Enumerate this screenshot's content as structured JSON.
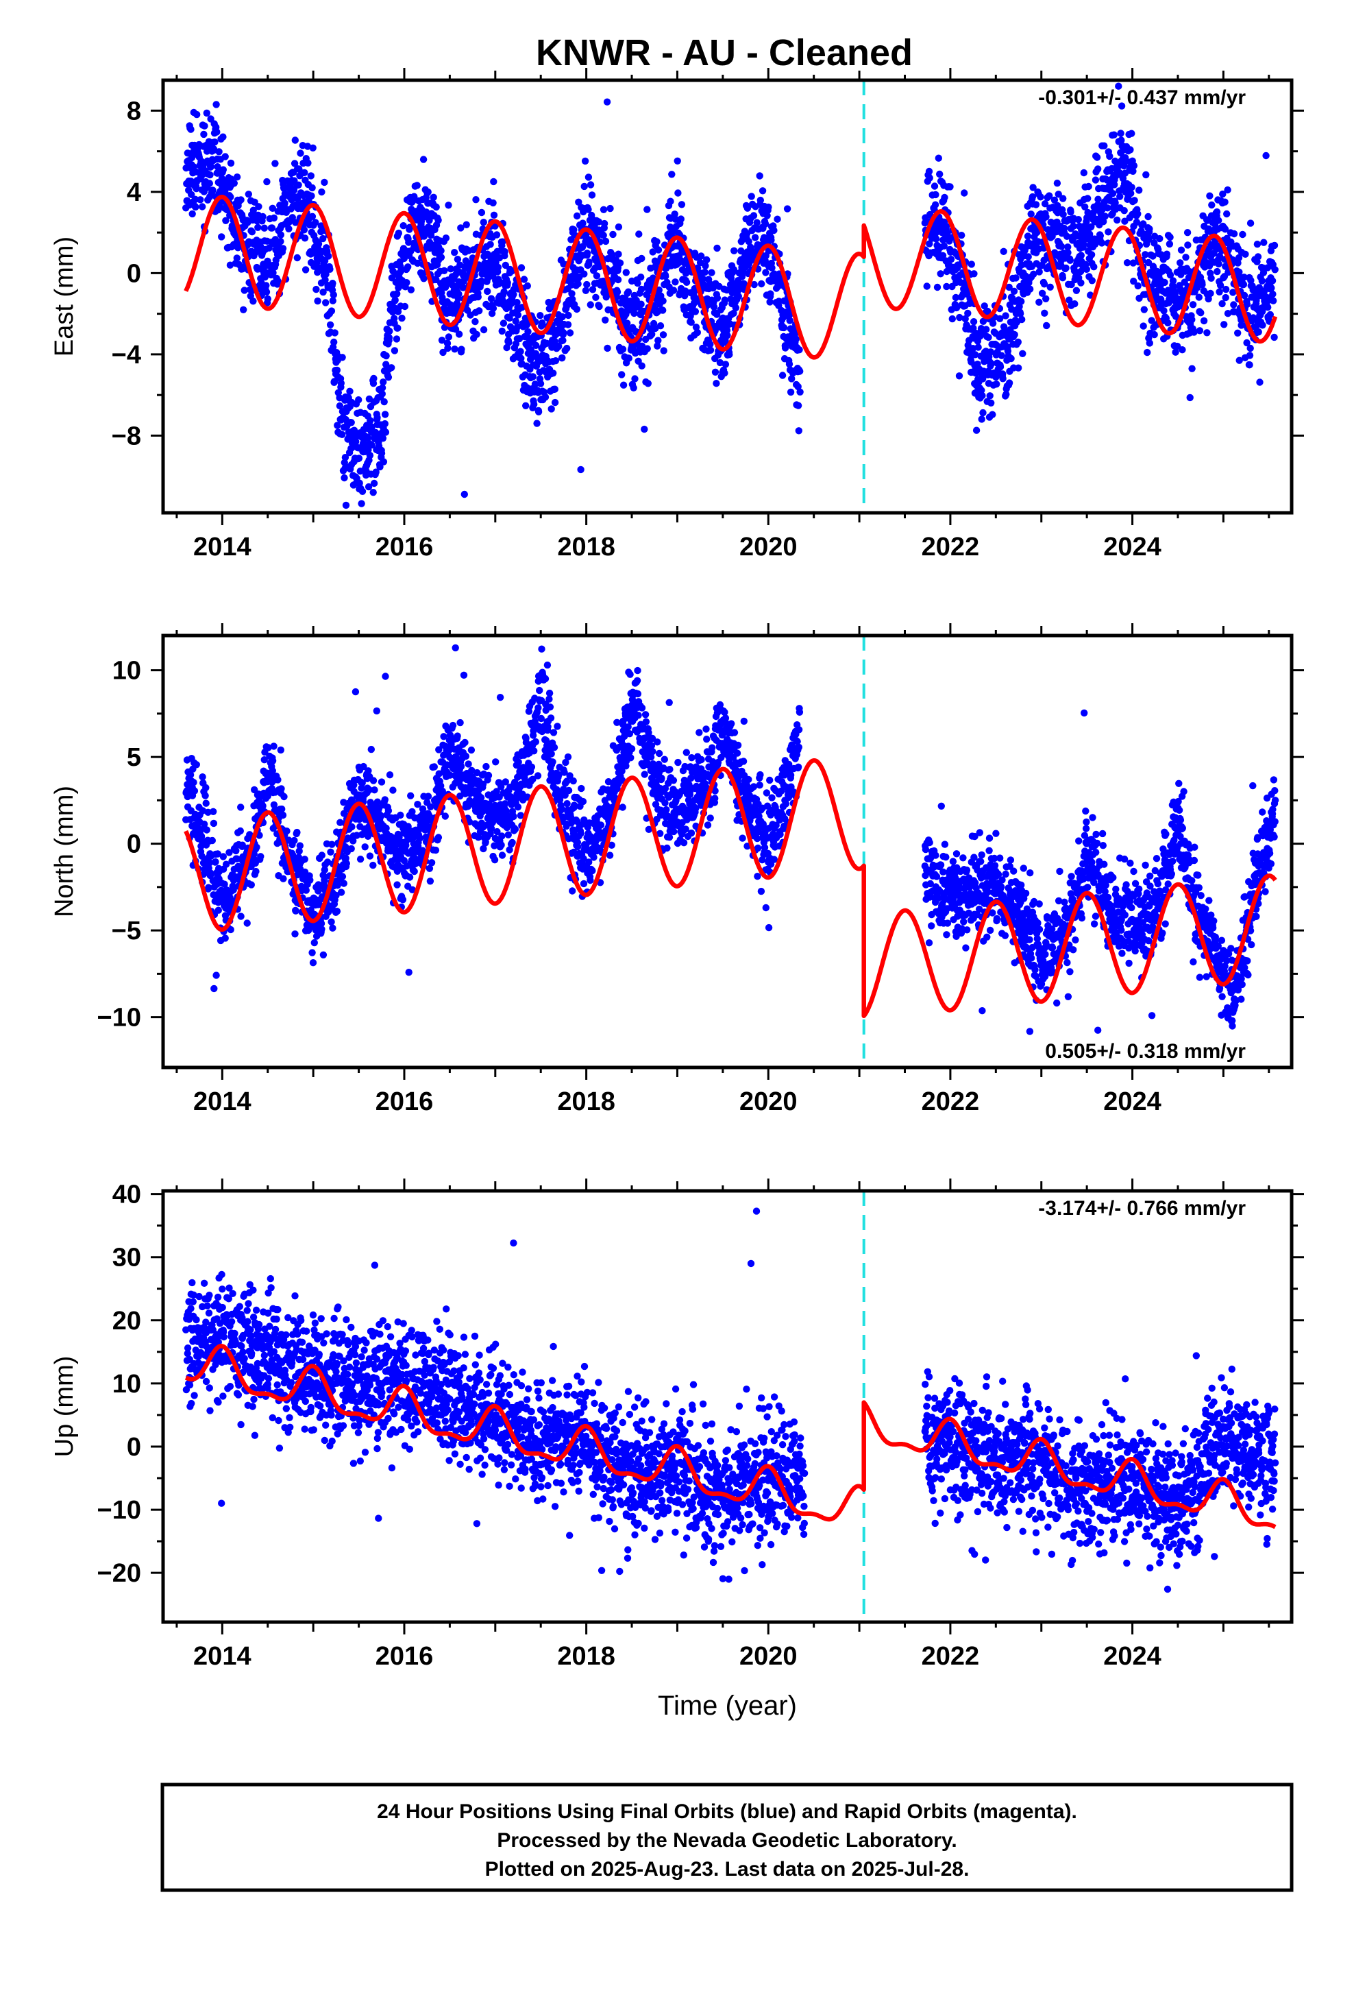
{
  "title": "KNWR  - AU - Cleaned",
  "footer": {
    "line1": "24 Hour Positions Using Final Orbits (blue) and Rapid Orbits (magenta).",
    "line2": "Processed by the Nevada Geodetic Laboratory.",
    "line3": "Plotted on 2025-Aug-23. Last data on 2025-Jul-28."
  },
  "colors": {
    "data": "#0000ff",
    "model": "#ff0000",
    "step": "#20e0e0",
    "frame": "#000000"
  },
  "chart_data": [
    {
      "type": "scatter",
      "name": "east",
      "ylabel": "East (mm)",
      "xlabel": "",
      "rate_label": "-0.301+/- 0.437 mm/yr",
      "rate_pos": "top-right",
      "xlim": [
        2013.35,
        2025.75
      ],
      "ylim": [
        -11.8,
        9.5
      ],
      "x_ticks": [
        2014,
        2016,
        2018,
        2020,
        2022,
        2024
      ],
      "x_tick_labels": [
        "2014",
        "2016",
        "2018",
        "2020",
        "2022",
        "2024"
      ],
      "y_ticks": [
        8,
        4,
        0,
        -4,
        -8
      ],
      "y_tick_labels": [
        "8",
        "4",
        "0",
        "−4",
        "−8"
      ],
      "step_epoch": 2021.05,
      "data_start": 2013.6,
      "data_end": 2025.57,
      "data_gap": [
        2020.35,
        2021.72
      ],
      "seed": 11,
      "noise_sd": 1.35,
      "data_profile": [
        [
          2013.6,
          4.5
        ],
        [
          2013.9,
          5.5
        ],
        [
          2014.2,
          2
        ],
        [
          2014.5,
          0.5
        ],
        [
          2014.75,
          3.5
        ],
        [
          2014.9,
          4
        ],
        [
          2015.2,
          -1
        ],
        [
          2015.3,
          -7
        ],
        [
          2015.5,
          -9
        ],
        [
          2015.75,
          -8
        ],
        [
          2015.85,
          -2
        ],
        [
          2016.1,
          2.5
        ],
        [
          2016.3,
          2
        ],
        [
          2016.5,
          -2
        ],
        [
          2016.8,
          0
        ],
        [
          2017,
          0.5
        ],
        [
          2017.3,
          -3
        ],
        [
          2017.5,
          -5
        ],
        [
          2017.7,
          -3
        ],
        [
          2017.95,
          2
        ],
        [
          2018.2,
          0.5
        ],
        [
          2018.5,
          -3
        ],
        [
          2018.7,
          -2
        ],
        [
          2018.95,
          1.5
        ],
        [
          2019.2,
          -1
        ],
        [
          2019.5,
          -3
        ],
        [
          2019.75,
          0.5
        ],
        [
          2019.95,
          2
        ],
        [
          2020.2,
          -2
        ],
        [
          2020.35,
          -5
        ],
        [
          2021.72,
          2
        ],
        [
          2021.9,
          2.5
        ],
        [
          2022.1,
          0.5
        ],
        [
          2022.3,
          -5
        ],
        [
          2022.5,
          -4
        ],
        [
          2022.7,
          -2.5
        ],
        [
          2022.9,
          2
        ],
        [
          2023.1,
          1.5
        ],
        [
          2023.4,
          1
        ],
        [
          2023.6,
          2.5
        ],
        [
          2023.9,
          5.5
        ],
        [
          2024.1,
          1
        ],
        [
          2024.3,
          -1
        ],
        [
          2024.6,
          -2
        ],
        [
          2024.9,
          2
        ],
        [
          2025.1,
          0
        ],
        [
          2025.3,
          -2
        ],
        [
          2025.57,
          0
        ]
      ],
      "model": {
        "offset_pre": -0.1,
        "trend": -0.4,
        "annual_amp": 2.65,
        "annual_phase": 2014.0,
        "jump": 2.5,
        "offset_post": 0.1,
        "annual_amp_post": 2.5,
        "annual_phase_post": 2021.9,
        "semi_amp": 0.0
      }
    },
    {
      "type": "scatter",
      "name": "north",
      "ylabel": "North (mm)",
      "xlabel": "",
      "rate_label": "0.505+/- 0.318 mm/yr",
      "rate_pos": "bottom-right",
      "xlim": [
        2013.35,
        2025.75
      ],
      "ylim": [
        -12.9,
        12.0
      ],
      "x_ticks": [
        2014,
        2016,
        2018,
        2020,
        2022,
        2024
      ],
      "x_tick_labels": [
        "2014",
        "2016",
        "2018",
        "2020",
        "2022",
        "2024"
      ],
      "y_ticks": [
        10,
        5,
        0,
        -5,
        -10
      ],
      "y_tick_labels": [
        "10",
        "5",
        "0",
        "−5",
        "−10"
      ],
      "step_epoch": 2021.05,
      "data_start": 2013.6,
      "data_end": 2025.57,
      "data_gap": [
        2020.35,
        2021.72
      ],
      "seed": 23,
      "noise_sd": 1.25,
      "data_profile": [
        [
          2013.6,
          3
        ],
        [
          2013.9,
          -1
        ],
        [
          2014.0,
          -3.5
        ],
        [
          2014.3,
          -1
        ],
        [
          2014.5,
          4
        ],
        [
          2014.75,
          -1
        ],
        [
          2015.0,
          -4
        ],
        [
          2015.2,
          -3
        ],
        [
          2015.5,
          3
        ],
        [
          2015.8,
          0.5
        ],
        [
          2016.0,
          -1
        ],
        [
          2016.3,
          1.5
        ],
        [
          2016.5,
          5.5
        ],
        [
          2016.8,
          2
        ],
        [
          2017.0,
          1.5
        ],
        [
          2017.2,
          1.5
        ],
        [
          2017.5,
          8.5
        ],
        [
          2017.7,
          3
        ],
        [
          2018.0,
          -1
        ],
        [
          2018.3,
          2.5
        ],
        [
          2018.5,
          8.5
        ],
        [
          2018.8,
          3
        ],
        [
          2019.0,
          2
        ],
        [
          2019.3,
          3
        ],
        [
          2019.5,
          6.5
        ],
        [
          2019.8,
          2
        ],
        [
          2020.0,
          0.5
        ],
        [
          2020.2,
          3
        ],
        [
          2020.35,
          6.5
        ],
        [
          2021.72,
          -2
        ],
        [
          2021.9,
          -3
        ],
        [
          2022.2,
          -3
        ],
        [
          2022.5,
          -2.5
        ],
        [
          2022.8,
          -4
        ],
        [
          2023.0,
          -6.5
        ],
        [
          2023.3,
          -5
        ],
        [
          2023.5,
          -1
        ],
        [
          2023.8,
          -4
        ],
        [
          2024.0,
          -4.5
        ],
        [
          2024.3,
          -3
        ],
        [
          2024.5,
          1
        ],
        [
          2024.7,
          -4
        ],
        [
          2024.9,
          -6
        ],
        [
          2025.1,
          -9
        ],
        [
          2025.3,
          -4
        ],
        [
          2025.57,
          2
        ]
      ],
      "model": {
        "offset_pre": -0.2,
        "trend": 0.5,
        "annual_amp": 3.25,
        "annual_phase": 2014.5,
        "jump": -8.9,
        "offset_post": 0.0,
        "annual_amp_post": 3.0,
        "annual_phase_post": 2021.5,
        "semi_amp": 0.0
      }
    },
    {
      "type": "scatter",
      "name": "up",
      "ylabel": "Up (mm)",
      "xlabel": "Time (year)",
      "rate_label": "-3.174+/- 0.766 mm/yr",
      "rate_pos": "top-right",
      "xlim": [
        2013.35,
        2025.75
      ],
      "ylim": [
        -27.8,
        40.5
      ],
      "x_ticks": [
        2014,
        2016,
        2018,
        2020,
        2022,
        2024
      ],
      "x_tick_labels": [
        "2014",
        "2016",
        "2018",
        "2020",
        "2022",
        "2024"
      ],
      "y_ticks": [
        40,
        30,
        20,
        10,
        0,
        -10,
        -20
      ],
      "y_tick_labels": [
        "40",
        "30",
        "20",
        "10",
        "0",
        "−10",
        "−20"
      ],
      "step_epoch": 2021.05,
      "data_start": 2013.6,
      "data_end": 2025.57,
      "data_gap": [
        2020.4,
        2021.72
      ],
      "seed": 37,
      "noise_sd": 4.6,
      "data_profile": [
        [
          2013.6,
          16
        ],
        [
          2014.0,
          17
        ],
        [
          2014.5,
          14
        ],
        [
          2015.0,
          11
        ],
        [
          2015.5,
          9
        ],
        [
          2016.0,
          11
        ],
        [
          2016.5,
          7
        ],
        [
          2017.0,
          6
        ],
        [
          2017.5,
          0
        ],
        [
          2018.0,
          1
        ],
        [
          2018.5,
          -5
        ],
        [
          2019.0,
          -3
        ],
        [
          2019.5,
          -8
        ],
        [
          2020.0,
          -4
        ],
        [
          2020.4,
          -6
        ],
        [
          2021.72,
          0
        ],
        [
          2022.0,
          1
        ],
        [
          2022.5,
          -3
        ],
        [
          2023.0,
          -3
        ],
        [
          2023.5,
          -8
        ],
        [
          2024.0,
          -5
        ],
        [
          2024.5,
          -10
        ],
        [
          2025.0,
          2
        ],
        [
          2025.57,
          -3
        ]
      ],
      "model": {
        "offset_pre": 2.2,
        "trend": -3.17,
        "annual_amp": 3.0,
        "annual_phase": 2014.0,
        "jump": 14.0,
        "offset_post": 0.0,
        "annual_amp_post": 2.8,
        "annual_phase_post": 2022.0,
        "semi_amp": 1.2
      }
    }
  ]
}
